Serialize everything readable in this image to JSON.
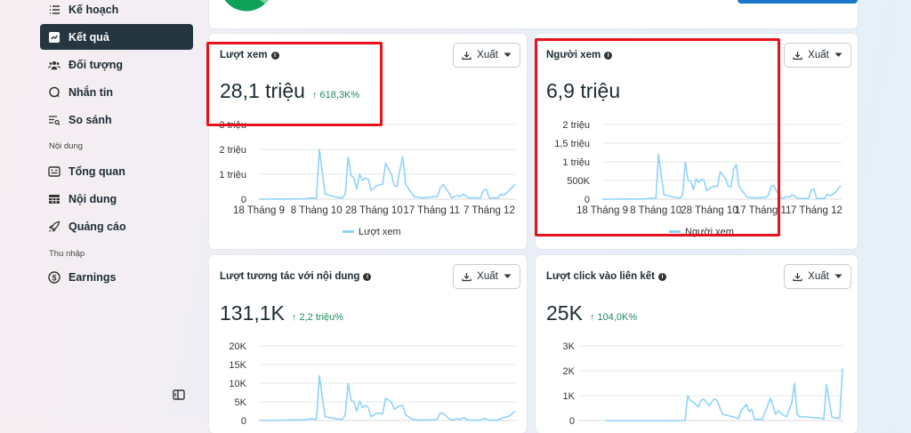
{
  "sidebar": {
    "items": [
      {
        "label": "Kế hoạch",
        "icon": "list-icon"
      },
      {
        "label": "Kết quả",
        "icon": "trend-chart-icon",
        "active": true
      },
      {
        "label": "Đối tượng",
        "icon": "people-icon"
      },
      {
        "label": "Nhắn tin",
        "icon": "chat-icon"
      },
      {
        "label": "So sánh",
        "icon": "compare-search-icon"
      }
    ],
    "content_section": "Nội dung",
    "content_items": [
      {
        "label": "Tổng quan",
        "icon": "overview-card-icon"
      },
      {
        "label": "Nội dung",
        "icon": "table-icon"
      },
      {
        "label": "Quảng cáo",
        "icon": "rocket-icon"
      }
    ],
    "income_section": "Thu nhập",
    "income_items": [
      {
        "label": "Earnings",
        "icon": "dollar-circle-icon"
      }
    ]
  },
  "colors": {
    "accent": "#263640",
    "line": "#8fd3fb",
    "positive": "#1f8a5e",
    "highlight": "#e8101a",
    "top_button": "#1877c9",
    "pie_dark": "#0fa05a",
    "pie_light": "#7fd19b"
  },
  "cards": [
    {
      "title": "Lượt xem",
      "value": "28,1 triệu",
      "change": "618,3K%",
      "export": "Xuất",
      "legend": "Lượt xem"
    },
    {
      "title": "Người xem",
      "value": "6,9 triệu",
      "change": "",
      "export": "Xuất",
      "legend": "Người xem"
    },
    {
      "title": "Lượt tương tác với nội dung",
      "value": "131,1K",
      "change": "2,2 triệu%",
      "export": "Xuất"
    },
    {
      "title": "Lượt click vào liên kết",
      "value": "25K",
      "change": "104,0K%",
      "export": "Xuất"
    }
  ],
  "chart_data": [
    {
      "type": "line",
      "series_name": "Lượt xem",
      "ylim": [
        0,
        3000000
      ],
      "yticks": [
        0,
        1000000,
        2000000,
        3000000
      ],
      "ytick_labels": [
        "0",
        "1 triệu",
        "2 triệu",
        "3 triệu"
      ],
      "xticks": [
        "18 Tháng 9",
        "8 Tháng 10",
        "28 Tháng 10",
        "17 Tháng 11",
        "7 Tháng 12"
      ],
      "grid": true,
      "legend": "bottom",
      "x": [
        "18 Tháng 9",
        "4 Tháng 10",
        "6 Tháng 10",
        "8 Tháng 10",
        "9 Tháng 10",
        "11 Tháng 10",
        "15 Tháng 10",
        "17 Tháng 10",
        "18 Tháng 10",
        "19 Tháng 10",
        "20 Tháng 10",
        "21 Tháng 10",
        "22 Tháng 10",
        "23 Tháng 10",
        "24 Tháng 10",
        "25 Tháng 10",
        "26 Tháng 10",
        "27 Tháng 10",
        "29 Tháng 10",
        "31 Tháng 10",
        "1 Tháng 11",
        "3 Tháng 11",
        "4 Tháng 11",
        "5 Tháng 11",
        "6 Tháng 11",
        "7 Tháng 11",
        "8 Tháng 11",
        "10 Tháng 11",
        "11 Tháng 11",
        "14 Tháng 11",
        "18 Tháng 11",
        "19 Tháng 11",
        "20 Tháng 11",
        "21 Tháng 11",
        "23 Tháng 11",
        "24 Tháng 11",
        "26 Tháng 11",
        "27 Tháng 11",
        "28 Tháng 11",
        "30 Tháng 11",
        "4 Tháng 12",
        "5 Tháng 12",
        "6 Tháng 12",
        "7 Tháng 12",
        "10 Tháng 12",
        "11 Tháng 12",
        "12 Tháng 12",
        "14 Tháng 12",
        "16 Tháng 12"
      ],
      "y": [
        0,
        10000,
        50000,
        20000,
        2000000,
        200000,
        80000,
        50000,
        200000,
        1700000,
        950000,
        850000,
        400000,
        1000000,
        750000,
        850000,
        800000,
        350000,
        550000,
        600000,
        1450000,
        1000000,
        550000,
        500000,
        1200000,
        1700000,
        600000,
        250000,
        100000,
        50000,
        100000,
        100000,
        450000,
        600000,
        250000,
        50000,
        150000,
        100000,
        200000,
        50000,
        50000,
        350000,
        400000,
        50000,
        50000,
        200000,
        150000,
        350000,
        600000
      ]
    },
    {
      "type": "line",
      "series_name": "Người xem",
      "ylim": [
        0,
        2000000
      ],
      "yticks": [
        0,
        500000,
        1000000,
        1500000,
        2000000
      ],
      "ytick_labels": [
        "0",
        "500K",
        "1 triệu",
        "1,5 triệu",
        "2 triệu"
      ],
      "xticks": [
        "18 Tháng 9",
        "8 Tháng 10",
        "28 Tháng 10",
        "17 Tháng 11",
        "7 Tháng 12"
      ],
      "grid": true,
      "legend": "bottom",
      "x": [
        "18 Tháng 9",
        "4 Tháng 10",
        "6 Tháng 10",
        "8 Tháng 10",
        "9 Tháng 10",
        "11 Tháng 10",
        "15 Tháng 10",
        "17 Tháng 10",
        "18 Tháng 10",
        "19 Tháng 10",
        "20 Tháng 10",
        "21 Tháng 10",
        "22 Tháng 10",
        "23 Tháng 10",
        "24 Tháng 10",
        "25 Tháng 10",
        "26 Tháng 10",
        "27 Tháng 10",
        "29 Tháng 10",
        "31 Tháng 10",
        "1 Tháng 11",
        "3 Tháng 11",
        "4 Tháng 11",
        "5 Tháng 11",
        "6 Tháng 11",
        "7 Tháng 11",
        "8 Tháng 11",
        "10 Tháng 11",
        "11 Tháng 11",
        "14 Tháng 11",
        "18 Tháng 11",
        "19 Tháng 11",
        "20 Tháng 11",
        "21 Tháng 11",
        "23 Tháng 11",
        "24 Tháng 11",
        "26 Tháng 11",
        "27 Tháng 11",
        "28 Tháng 11",
        "30 Tháng 11",
        "4 Tháng 12",
        "5 Tháng 12",
        "6 Tháng 12",
        "7 Tháng 12",
        "10 Tháng 12",
        "11 Tháng 12",
        "12 Tháng 12",
        "14 Tháng 12",
        "16 Tháng 12"
      ],
      "y": [
        0,
        5000,
        30000,
        10000,
        1200000,
        120000,
        50000,
        30000,
        120000,
        1000000,
        500000,
        480000,
        250000,
        550000,
        450000,
        530000,
        500000,
        230000,
        330000,
        350000,
        730000,
        550000,
        350000,
        320000,
        800000,
        930000,
        350000,
        150000,
        60000,
        30000,
        50000,
        100000,
        330000,
        370000,
        100000,
        20000,
        70000,
        60000,
        120000,
        20000,
        20000,
        250000,
        270000,
        20000,
        20000,
        130000,
        90000,
        180000,
        360000
      ]
    },
    {
      "type": "line",
      "ylim": [
        0,
        20000
      ],
      "yticks": [
        0,
        5000,
        10000,
        15000,
        20000
      ],
      "ytick_labels": [
        "0",
        "5K",
        "10K",
        "15K",
        "20K"
      ],
      "grid": true,
      "x": [
        "18 Tháng 9",
        "4 Tháng 10",
        "6 Tháng 10",
        "8 Tháng 10",
        "9 Tháng 10",
        "11 Tháng 10",
        "15 Tháng 10",
        "17 Tháng 10",
        "18 Tháng 10",
        "19 Tháng 10",
        "20 Tháng 10",
        "21 Tháng 10",
        "22 Tháng 10",
        "23 Tháng 10",
        "24 Tháng 10",
        "25 Tháng 10",
        "26 Tháng 10",
        "27 Tháng 10",
        "29 Tháng 10",
        "31 Tháng 10",
        "1 Tháng 11",
        "3 Tháng 11",
        "4 Tháng 11",
        "5 Tháng 11",
        "6 Tháng 11",
        "7 Tháng 11",
        "8 Tháng 11",
        "10 Tháng 11",
        "11 Tháng 11",
        "14 Tháng 11",
        "18 Tháng 11",
        "19 Tháng 11",
        "20 Tháng 11",
        "21 Tháng 11",
        "23 Tháng 11",
        "24 Tháng 11",
        "26 Tháng 11",
        "27 Tháng 11",
        "28 Tháng 11",
        "30 Tháng 11",
        "4 Tháng 12",
        "5 Tháng 12",
        "6 Tháng 12",
        "7 Tháng 12",
        "10 Tháng 12",
        "11 Tháng 12",
        "12 Tháng 12",
        "14 Tháng 12",
        "16 Tháng 12"
      ],
      "y": [
        0,
        200,
        500,
        300,
        12000,
        1000,
        500,
        300,
        1500,
        10000,
        5500,
        5000,
        2500,
        5200,
        3500,
        4000,
        3500,
        1000,
        2000,
        1800,
        6000,
        5000,
        3000,
        3500,
        4000,
        4000,
        1500,
        500,
        200,
        100,
        200,
        500,
        2000,
        2000,
        500,
        100,
        500,
        300,
        800,
        100,
        100,
        500,
        500,
        100,
        100,
        500,
        800,
        1200,
        2500
      ]
    },
    {
      "type": "line",
      "ylim": [
        0,
        3000
      ],
      "yticks": [
        0,
        1000,
        2000,
        3000
      ],
      "ytick_labels": [
        "0",
        "1K",
        "2K",
        "3K"
      ],
      "grid": true,
      "x": [
        "18 Tháng 9",
        "18 Tháng 10",
        "19 Tháng 10",
        "20 Tháng 10",
        "21 Tháng 10",
        "23 Tháng 10",
        "24 Tháng 10",
        "25 Tháng 10",
        "27 Tháng 10",
        "29 Tháng 10",
        "30 Tháng 10",
        "1 Tháng 11",
        "3 Tháng 11",
        "5 Tháng 11",
        "7 Tháng 11",
        "8 Tháng 11",
        "10 Tháng 11",
        "11 Tháng 11",
        "12 Tháng 11",
        "13 Tháng 11",
        "16 Tháng 11",
        "19 Tháng 11",
        "21 Tháng 11",
        "22 Tháng 11",
        "24 Tháng 11",
        "25 Tháng 11",
        "27 Tháng 11",
        "28 Tháng 11",
        "29 Tháng 11",
        "30 Tháng 11",
        "3 Tháng 12",
        "6 Tháng 12",
        "8 Tháng 12",
        "9 Tháng 12",
        "10 Tháng 12",
        "12 Tháng 12",
        "13 Tháng 12",
        "15 Tháng 12",
        "16 Tháng 12"
      ],
      "y": [
        0,
        0,
        1000,
        800,
        750,
        550,
        800,
        870,
        600,
        880,
        800,
        250,
        200,
        150,
        80,
        400,
        650,
        350,
        450,
        50,
        50,
        900,
        250,
        400,
        200,
        150,
        700,
        1500,
        250,
        150,
        150,
        100,
        100,
        50,
        1450,
        150,
        100,
        100,
        2100
      ]
    }
  ]
}
